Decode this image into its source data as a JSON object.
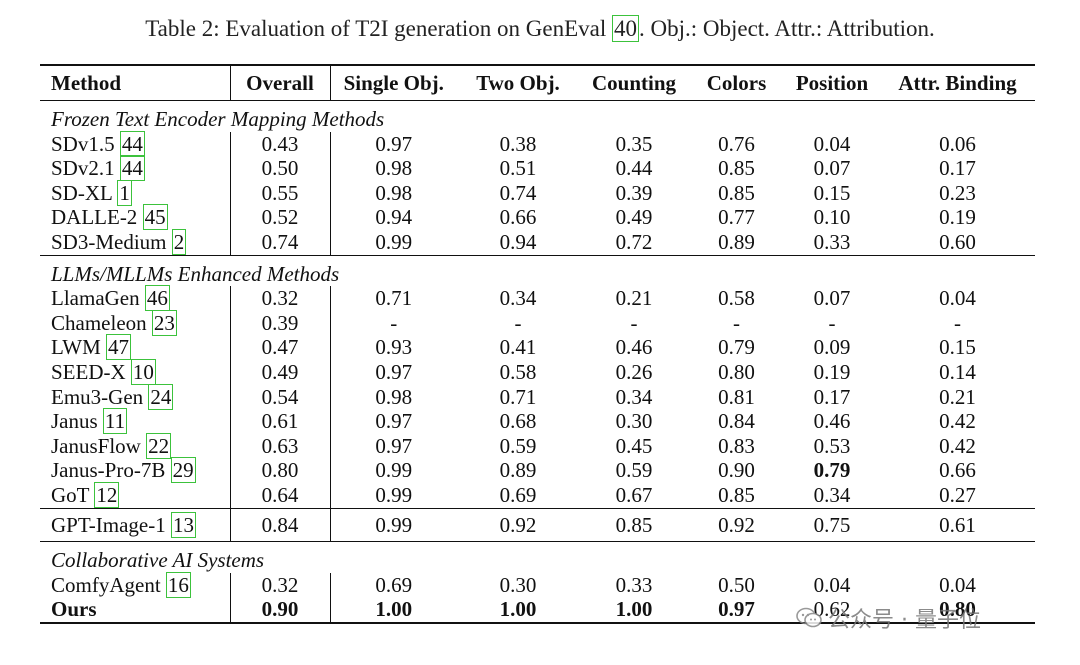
{
  "caption": {
    "prefix": "Table 2: Evaluation of T2I generation on GenEval ",
    "ref": "40",
    "suffix": ". Obj.: Object. Attr.: Attribution."
  },
  "headers": [
    "Method",
    "Overall",
    "Single Obj.",
    "Two Obj.",
    "Counting",
    "Colors",
    "Position",
    "Attr. Binding"
  ],
  "sections": [
    {
      "title": "Frozen Text Encoder Mapping Methods",
      "rows": [
        {
          "name": "SDv1.5",
          "ref": "44",
          "values": [
            "0.43",
            "0.97",
            "0.38",
            "0.35",
            "0.76",
            "0.04",
            "0.06"
          ]
        },
        {
          "name": "SDv2.1",
          "ref": "44",
          "values": [
            "0.50",
            "0.98",
            "0.51",
            "0.44",
            "0.85",
            "0.07",
            "0.17"
          ]
        },
        {
          "name": "SD-XL",
          "ref": "1",
          "values": [
            "0.55",
            "0.98",
            "0.74",
            "0.39",
            "0.85",
            "0.15",
            "0.23"
          ]
        },
        {
          "name": "DALLE-2",
          "ref": "45",
          "values": [
            "0.52",
            "0.94",
            "0.66",
            "0.49",
            "0.77",
            "0.10",
            "0.19"
          ]
        },
        {
          "name": "SD3-Medium",
          "ref": "2",
          "values": [
            "0.74",
            "0.99",
            "0.94",
            "0.72",
            "0.89",
            "0.33",
            "0.60"
          ]
        }
      ]
    },
    {
      "title": "LLMs/MLLMs Enhanced Methods",
      "rows": [
        {
          "name": "LlamaGen",
          "ref": "46",
          "values": [
            "0.32",
            "0.71",
            "0.34",
            "0.21",
            "0.58",
            "0.07",
            "0.04"
          ]
        },
        {
          "name": "Chameleon",
          "ref": "23",
          "values": [
            "0.39",
            "-",
            "-",
            "-",
            "-",
            "-",
            "-"
          ]
        },
        {
          "name": "LWM",
          "ref": "47",
          "values": [
            "0.47",
            "0.93",
            "0.41",
            "0.46",
            "0.79",
            "0.09",
            "0.15"
          ]
        },
        {
          "name": "SEED-X",
          "ref": "10",
          "values": [
            "0.49",
            "0.97",
            "0.58",
            "0.26",
            "0.80",
            "0.19",
            "0.14"
          ]
        },
        {
          "name": "Emu3-Gen",
          "ref": "24",
          "values": [
            "0.54",
            "0.98",
            "0.71",
            "0.34",
            "0.81",
            "0.17",
            "0.21"
          ]
        },
        {
          "name": "Janus",
          "ref": "11",
          "values": [
            "0.61",
            "0.97",
            "0.68",
            "0.30",
            "0.84",
            "0.46",
            "0.42"
          ]
        },
        {
          "name": "JanusFlow",
          "ref": "22",
          "values": [
            "0.63",
            "0.97",
            "0.59",
            "0.45",
            "0.83",
            "0.53",
            "0.42"
          ]
        },
        {
          "name": "Janus-Pro-7B",
          "ref": "29",
          "values": [
            "0.80",
            "0.99",
            "0.89",
            "0.59",
            "0.90",
            "0.79",
            "0.66"
          ],
          "bold_cols": [
            5
          ]
        },
        {
          "name": "GoT",
          "ref": "12",
          "values": [
            "0.64",
            "0.99",
            "0.69",
            "0.67",
            "0.85",
            "0.34",
            "0.27"
          ]
        }
      ]
    },
    {
      "title": "",
      "rows": [
        {
          "name": "GPT-Image-1",
          "ref": "13",
          "values": [
            "0.84",
            "0.99",
            "0.92",
            "0.85",
            "0.92",
            "0.75",
            "0.61"
          ]
        }
      ]
    },
    {
      "title": "Collaborative AI Systems",
      "rows": [
        {
          "name": "ComfyAgent",
          "ref": "16",
          "values": [
            "0.32",
            "0.69",
            "0.30",
            "0.33",
            "0.50",
            "0.04",
            "0.04"
          ]
        },
        {
          "name": "Ours",
          "ref": "",
          "values": [
            "0.90",
            "1.00",
            "1.00",
            "1.00",
            "0.97",
            "0.62",
            "0.80"
          ],
          "bold_name": true,
          "bold_cols": [
            0,
            1,
            2,
            3,
            4,
            6
          ]
        }
      ]
    }
  ],
  "watermark": {
    "text": "公众号 · 量子位",
    "icon": "wechat-icon"
  }
}
